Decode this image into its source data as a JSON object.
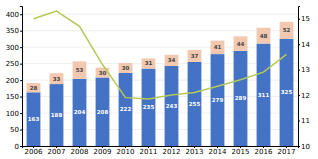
{
  "chart_data": {
    "type": "bar",
    "categories": [
      "2006",
      "2007",
      "2008",
      "2009",
      "2010",
      "2011",
      "2012",
      "2013",
      "2014",
      "2015",
      "2016",
      "2017"
    ],
    "series": [
      {
        "color": "#4472c4",
        "values": [
          163,
          188,
          204,
          208,
          222,
          235,
          243,
          255,
          279,
          289,
          311,
          325
        ],
        "data_labels": true
      },
      {
        "color": "#f2c9b0",
        "values": [
          28,
          33,
          53,
          30,
          30,
          31,
          34,
          37,
          41,
          44,
          48,
          52
        ],
        "data_labels": true
      },
      {
        "type": "line",
        "axis": "y2",
        "color": "#b5c957",
        "values": [
          15.0,
          15.3,
          14.7,
          13.2,
          11.9,
          11.85,
          12.0,
          12.1,
          12.35,
          12.6,
          12.9,
          13.6
        ]
      }
    ],
    "stacked": true,
    "ylim": [
      0,
      425
    ],
    "yticks": [
      0,
      50,
      100,
      150,
      200,
      250,
      300,
      350,
      400
    ],
    "y2lim": [
      10,
      15.5
    ],
    "y2ticks": [
      10,
      11,
      12,
      13,
      14,
      15
    ],
    "grid": true
  }
}
